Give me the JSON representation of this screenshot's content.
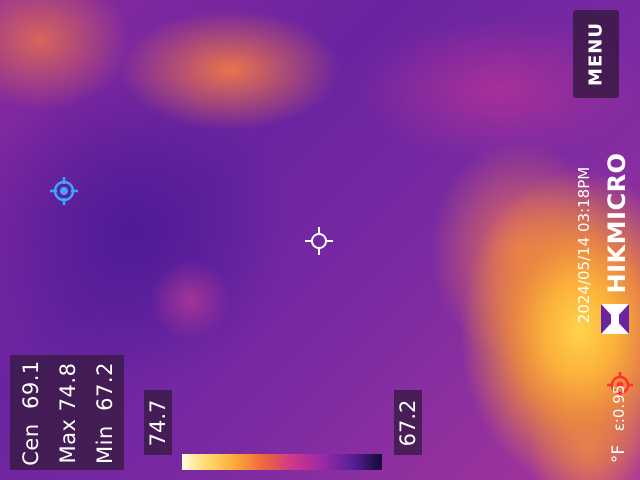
{
  "stats": {
    "center_label": "Cen",
    "center_value": "69.1",
    "max_label": "Max",
    "max_value": "74.8",
    "min_label": "Min",
    "min_value": "67.2"
  },
  "scale": {
    "high": "74.7",
    "low": "67.2",
    "palette": "iron-bow"
  },
  "menu": {
    "label": "MENU"
  },
  "brand": {
    "name": "HIKMICRO"
  },
  "datetime": "2024/05/14 03:18PM",
  "emissivity": "ε:0.95",
  "unit": "°F",
  "markers": {
    "center": "center-crosshair-icon",
    "cold": "cold-spot-icon",
    "hot": "hot-spot-icon"
  },
  "colors": {
    "cold_marker": "#3aa8ff",
    "hot_marker": "#ff3030",
    "center_marker": "#ffffff"
  }
}
